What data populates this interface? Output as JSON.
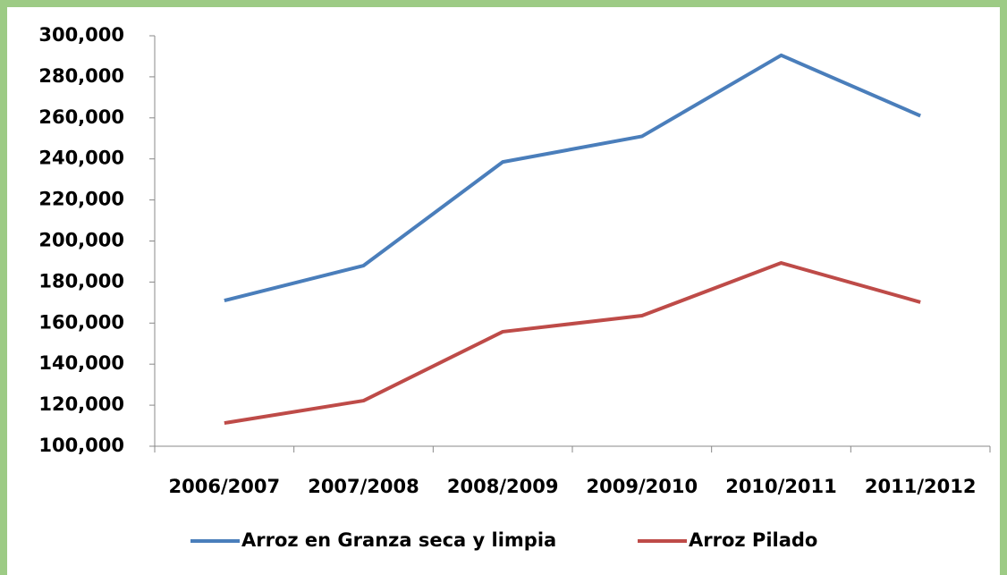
{
  "chart_data": {
    "type": "line",
    "categories": [
      "2006/2007",
      "2007/2008",
      "2008/2009",
      "2009/2010",
      "2010/2011",
      "2011/2012"
    ],
    "series": [
      {
        "name": "Arroz en Granza seca y limpia",
        "color": "#4a7ebb",
        "values": [
          171000,
          188000,
          238500,
          251000,
          290500,
          261000
        ]
      },
      {
        "name": "Arroz Pilado",
        "color": "#be4b48",
        "values": [
          111300,
          122200,
          155800,
          163600,
          189300,
          170200
        ]
      }
    ],
    "ylim": [
      100000,
      300000
    ],
    "yticks": [
      {
        "value": 100000,
        "label": "100,000"
      },
      {
        "value": 120000,
        "label": "120,000"
      },
      {
        "value": 140000,
        "label": "140,000"
      },
      {
        "value": 160000,
        "label": "160,000"
      },
      {
        "value": 180000,
        "label": "180,000"
      },
      {
        "value": 200000,
        "label": "200,000"
      },
      {
        "value": 220000,
        "label": "220,000"
      },
      {
        "value": 240000,
        "label": "240,000"
      },
      {
        "value": 260000,
        "label": "260,000"
      },
      {
        "value": 280000,
        "label": "280,000"
      },
      {
        "value": 300000,
        "label": "300,000"
      }
    ],
    "grid": false,
    "legend": "bottom"
  }
}
